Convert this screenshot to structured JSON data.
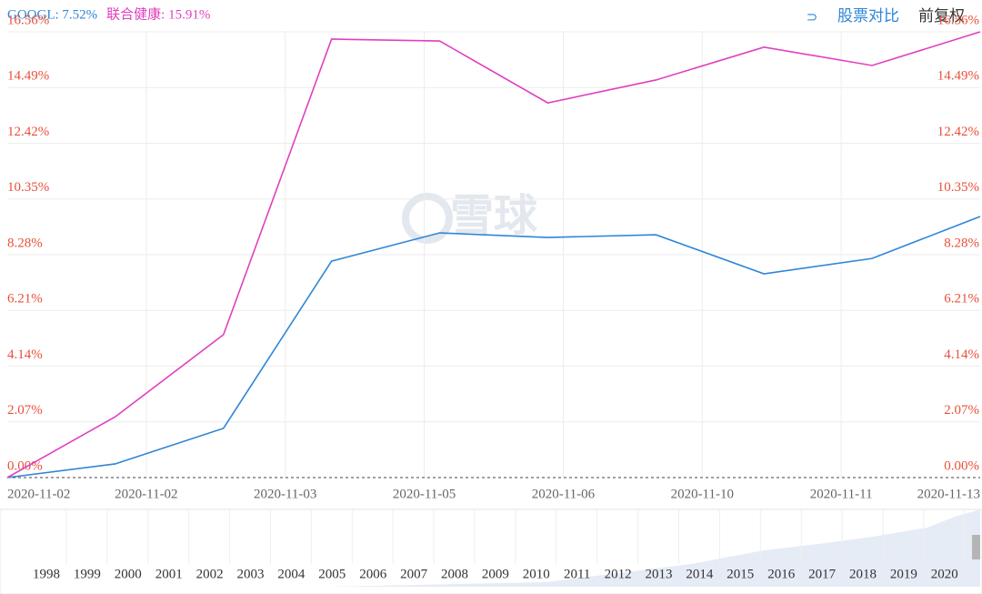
{
  "chart_data": {
    "type": "line",
    "header": [
      {
        "label": "GOOGL: 7.52%",
        "color": "#2f86d6"
      },
      {
        "label": "联合健康: 15.91%",
        "color": "#e040c0"
      }
    ],
    "controls": [
      "股票对比",
      "前复权"
    ],
    "watermark": "雪球",
    "x_labels": [
      "2020-11-02",
      "2020-11-02",
      "2020-11-03",
      "2020-11-05",
      "2020-11-06",
      "2020-11-10",
      "2020-11-11",
      "2020-11-13"
    ],
    "series": [
      {
        "name": "GOOGL",
        "color": "#2f86d6",
        "values": [
          0,
          0.51,
          1.83,
          8.04,
          9.09,
          8.92,
          9.02,
          7.57,
          8.14,
          9.7
        ]
      },
      {
        "name": "联合健康",
        "color": "#e040c0",
        "values": [
          0,
          2.26,
          5.31,
          16.29,
          16.22,
          13.92,
          14.77,
          15.99,
          15.31,
          16.56
        ]
      }
    ],
    "ylim": [
      0,
      16.56
    ],
    "yticks": [
      {
        "value": 0,
        "label": "0.00%"
      },
      {
        "value": 2.07,
        "label": "2.07%"
      },
      {
        "value": 4.14,
        "label": "4.14%"
      },
      {
        "value": 6.21,
        "label": "6.21%"
      },
      {
        "value": 8.28,
        "label": "8.28%"
      },
      {
        "value": 10.35,
        "label": "10.35%"
      },
      {
        "value": 12.42,
        "label": "12.42%"
      },
      {
        "value": 14.49,
        "label": "14.49%"
      },
      {
        "value": 16.56,
        "label": "16.56%"
      }
    ],
    "grid": true,
    "tick_color": "#e8503a",
    "navigator_years": [
      "1998",
      "1999",
      "2000",
      "2001",
      "2002",
      "2003",
      "2004",
      "2005",
      "2006",
      "2007",
      "2008",
      "2009",
      "2010",
      "2011",
      "2012",
      "2013",
      "2014",
      "2015",
      "2016",
      "2017",
      "2018",
      "2019",
      "2020"
    ]
  }
}
